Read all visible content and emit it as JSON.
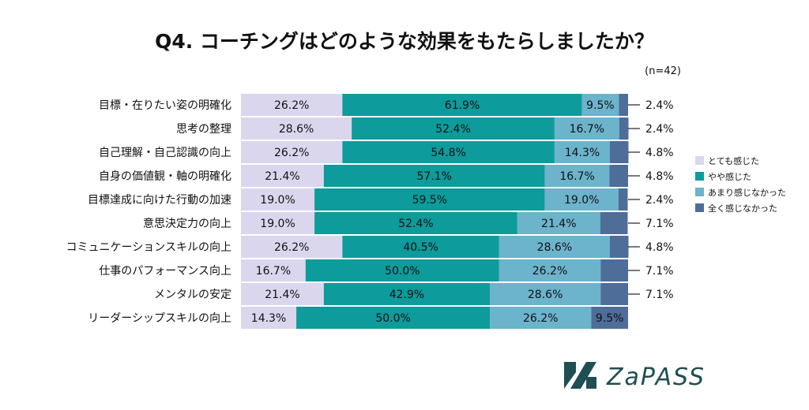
{
  "chart_data": {
    "type": "bar",
    "orientation": "horizontal-stacked-100",
    "title": "Q4. コーチングはどのような効果をもたらしましたか？",
    "note": "(n=42)",
    "categories": [
      "目標・在りたい姿の明確化",
      "思考の整理",
      "自己理解・自己認識の向上",
      "自身の価値観・軸の明確化",
      "目標達成に向けた行動の加速",
      "意思決定力の向上",
      "コミュニケーションスキルの向上",
      "仕事のパフォーマンス向上",
      "メンタルの安定",
      "リーダーシップスキルの向上"
    ],
    "series": [
      {
        "name": "とても感じた",
        "color": "#dad6ee",
        "values": [
          26.2,
          28.6,
          26.2,
          21.4,
          19.0,
          19.0,
          26.2,
          16.7,
          21.4,
          14.3
        ]
      },
      {
        "name": "やや感じた",
        "color": "#0e9b9b",
        "values": [
          61.9,
          52.4,
          54.8,
          57.1,
          59.5,
          52.4,
          40.5,
          50.0,
          42.9,
          50.0
        ]
      },
      {
        "name": "あまり感じなかった",
        "color": "#6cb3cc",
        "values": [
          9.5,
          16.7,
          14.3,
          16.7,
          19.0,
          21.4,
          28.6,
          26.2,
          28.6,
          26.2
        ]
      },
      {
        "name": "全く感じなかった",
        "color": "#4e6d99",
        "values": [
          2.4,
          2.4,
          4.8,
          4.8,
          2.4,
          7.1,
          4.8,
          7.1,
          7.1,
          9.5
        ]
      }
    ],
    "labels": [
      [
        "26.2%",
        "61.9%",
        "9.5%",
        "2.4%"
      ],
      [
        "28.6%",
        "52.4%",
        "16.7%",
        "2.4%"
      ],
      [
        "26.2%",
        "54.8%",
        "14.3%",
        "4.8%"
      ],
      [
        "21.4%",
        "57.1%",
        "16.7%",
        "4.8%"
      ],
      [
        "19.0%",
        "59.5%",
        "19.0%",
        "2.4%"
      ],
      [
        "19.0%",
        "52.4%",
        "21.4%",
        "7.1%"
      ],
      [
        "26.2%",
        "40.5%",
        "28.6%",
        "4.8%"
      ],
      [
        "16.7%",
        "50.0%",
        "26.2%",
        "7.1%"
      ],
      [
        "21.4%",
        "42.9%",
        "28.6%",
        "7.1%"
      ],
      [
        "14.3%",
        "50.0%",
        "26.2%",
        "9.5%"
      ]
    ],
    "xlim": [
      0,
      100
    ],
    "legend": "right"
  },
  "brand": {
    "name": "ZaPASS",
    "color": "#1f4e53"
  }
}
